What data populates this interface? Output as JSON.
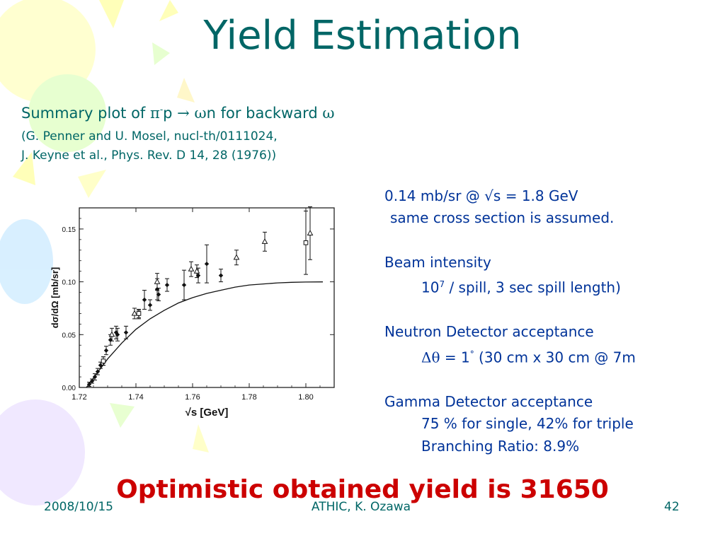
{
  "slide": {
    "title": "Yield Estimation",
    "summary": {
      "prefix": "Summary plot of ",
      "pi": "π",
      "minus": "-",
      "p": "p ",
      "arrow": "→",
      "omega": "ω",
      "n_rest": "n for backward ",
      "omega2": "ω"
    },
    "ref_line1": "(G. Penner and U. Mosel, nucl-th/0111024,",
    "ref_line2": "J. Keyne et al., Phys. Rev. D 14, 28 (1976))",
    "info": {
      "line1_a": "0.14 mb/sr @ ",
      "line1_sqrt": "√",
      "line1_b": "s = 1.8 GeV",
      "line2": "same cross section is assumed.",
      "beam_title": "Beam intensity",
      "beam_a": "10",
      "beam_sup": "7",
      "beam_b": " / spill, 3 sec spill length)",
      "neutron_title": "Neutron Detector acceptance",
      "neutron_delta": "Δθ",
      "neutron_b": " = 1",
      "neutron_deg": "°",
      "neutron_c": "  (30 cm x 30 cm @ 7m",
      "gamma_title": "Gamma Detector acceptance",
      "gamma_line1": "75 % for single, 42% for triple",
      "gamma_line2": "Branching Ratio: 8.9%"
    },
    "yield_text": "Optimistic obtained yield is 31650",
    "footer": {
      "date": "2008/10/15",
      "center": "ATHIC, K. Ozawa",
      "page": "42"
    },
    "colors": {
      "title": "#006666",
      "body": "#003399",
      "yield": "#cc0000"
    }
  },
  "chart_data": {
    "type": "scatter",
    "xlabel": "√s [GeV]",
    "ylabel": "dσ/dΩ [mb/sr]",
    "xlim": [
      1.72,
      1.81
    ],
    "ylim": [
      0.0,
      0.17
    ],
    "xticks": [
      1.72,
      1.74,
      1.76,
      1.78,
      1.8
    ],
    "xtick_labels": [
      "1.72",
      "1.74",
      "1.76",
      "1.78",
      "1.80"
    ],
    "yticks": [
      0.0,
      0.05,
      0.1,
      0.15
    ],
    "ytick_labels": [
      "0.00",
      "0.05",
      "0.10",
      "0.15"
    ],
    "series": [
      {
        "marker": "diamond",
        "points": [
          [
            1.7235,
            0.003,
            0.002
          ],
          [
            1.7245,
            0.006,
            0.002
          ],
          [
            1.7255,
            0.01,
            0.003
          ],
          [
            1.7265,
            0.015,
            0.003
          ],
          [
            1.7275,
            0.021,
            0.003
          ],
          [
            1.7285,
            0.025,
            0.004
          ],
          [
            1.7295,
            0.035,
            0.004
          ],
          [
            1.731,
            0.045,
            0.005
          ],
          [
            1.733,
            0.052,
            0.006
          ],
          [
            1.7335,
            0.05,
            0.006
          ],
          [
            1.7365,
            0.052,
            0.006
          ],
          [
            1.741,
            0.069,
            0.004
          ],
          [
            1.743,
            0.083,
            0.009
          ],
          [
            1.745,
            0.078,
            0.005
          ],
          [
            1.7475,
            0.093,
            0.01
          ],
          [
            1.748,
            0.088,
            0.006
          ],
          [
            1.751,
            0.097,
            0.006
          ],
          [
            1.757,
            0.097,
            0.014
          ],
          [
            1.762,
            0.106,
            0.007
          ],
          [
            1.765,
            0.117,
            0.018
          ],
          [
            1.77,
            0.106,
            0.006
          ]
        ]
      },
      {
        "marker": "triangle",
        "points": [
          [
            1.7315,
            0.05,
            0.006
          ],
          [
            1.7395,
            0.07,
            0.005
          ],
          [
            1.7475,
            0.1,
            0.008
          ],
          [
            1.7595,
            0.112,
            0.007
          ],
          [
            1.7615,
            0.11,
            0.006
          ],
          [
            1.7755,
            0.123,
            0.007
          ],
          [
            1.7855,
            0.138,
            0.009
          ],
          [
            1.8015,
            0.146,
            0.025
          ]
        ]
      },
      {
        "marker": "square",
        "points": [
          [
            1.7285,
            0.025,
            0.004
          ],
          [
            1.741,
            0.07,
            0.004
          ],
          [
            1.8,
            0.137,
            0.03
          ]
        ]
      }
    ],
    "curve": {
      "x": [
        1.7225,
        1.725,
        1.73,
        1.735,
        1.74,
        1.745,
        1.75,
        1.755,
        1.76,
        1.765,
        1.77,
        1.775,
        1.78,
        1.785,
        1.79,
        1.795,
        1.8,
        1.806
      ],
      "y": [
        0.0,
        0.009,
        0.027,
        0.042,
        0.055,
        0.065,
        0.073,
        0.08,
        0.085,
        0.089,
        0.092,
        0.095,
        0.097,
        0.098,
        0.099,
        0.0995,
        0.0998,
        0.0999
      ]
    }
  }
}
